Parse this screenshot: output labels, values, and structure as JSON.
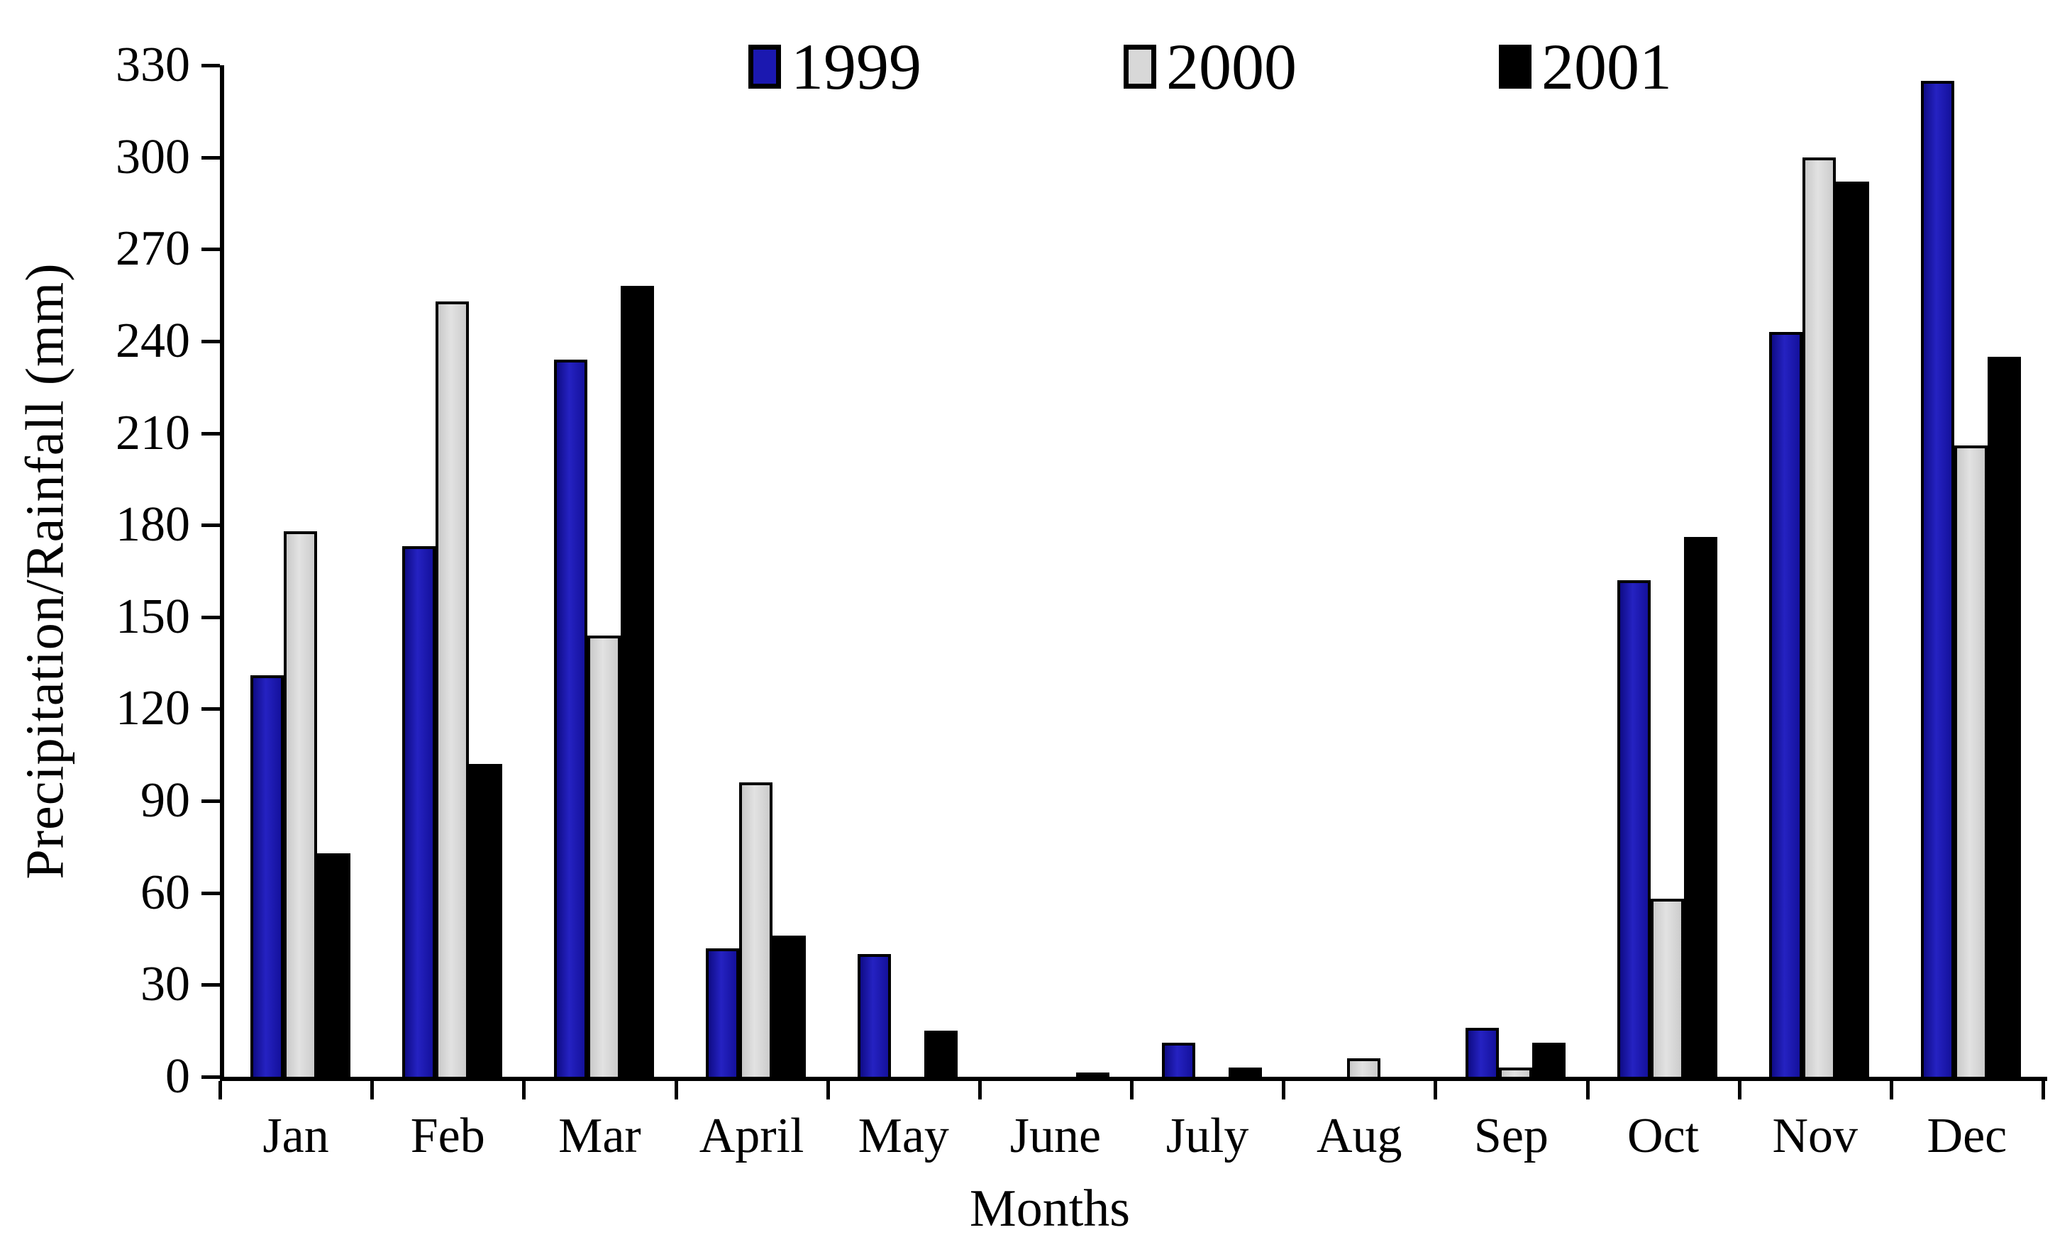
{
  "chart_data": {
    "type": "bar",
    "title": "",
    "xlabel": "Months",
    "ylabel": "Precipitation/Rainfall (mm)",
    "ylim": [
      0,
      330
    ],
    "ytick_step": 30,
    "yticks": [
      "0",
      "30",
      "60",
      "90",
      "120",
      "150",
      "180",
      "210",
      "240",
      "270",
      "300",
      "330"
    ],
    "grid": false,
    "legend_position": "top-center",
    "categories": [
      "Jan",
      "Feb",
      "Mar",
      "April",
      "May",
      "June",
      "July",
      "Aug",
      "Sep",
      "Oct",
      "Nov",
      "Dec"
    ],
    "series": [
      {
        "name": "1999",
        "color": "#1b18b0",
        "values": [
          131,
          173,
          234,
          42,
          40,
          0,
          11,
          0,
          16,
          162,
          243,
          325
        ]
      },
      {
        "name": "2000",
        "color": "#d8d8d8",
        "values": [
          178,
          253,
          144,
          96,
          0,
          0,
          0,
          6,
          3,
          58,
          300,
          206
        ]
      },
      {
        "name": "2001",
        "color": "#000000",
        "values": [
          73,
          102,
          258,
          46,
          15,
          1,
          3,
          0,
          11,
          176,
          292,
          235
        ]
      }
    ],
    "axis_color": "#000000",
    "background_color": "#ffffff"
  }
}
